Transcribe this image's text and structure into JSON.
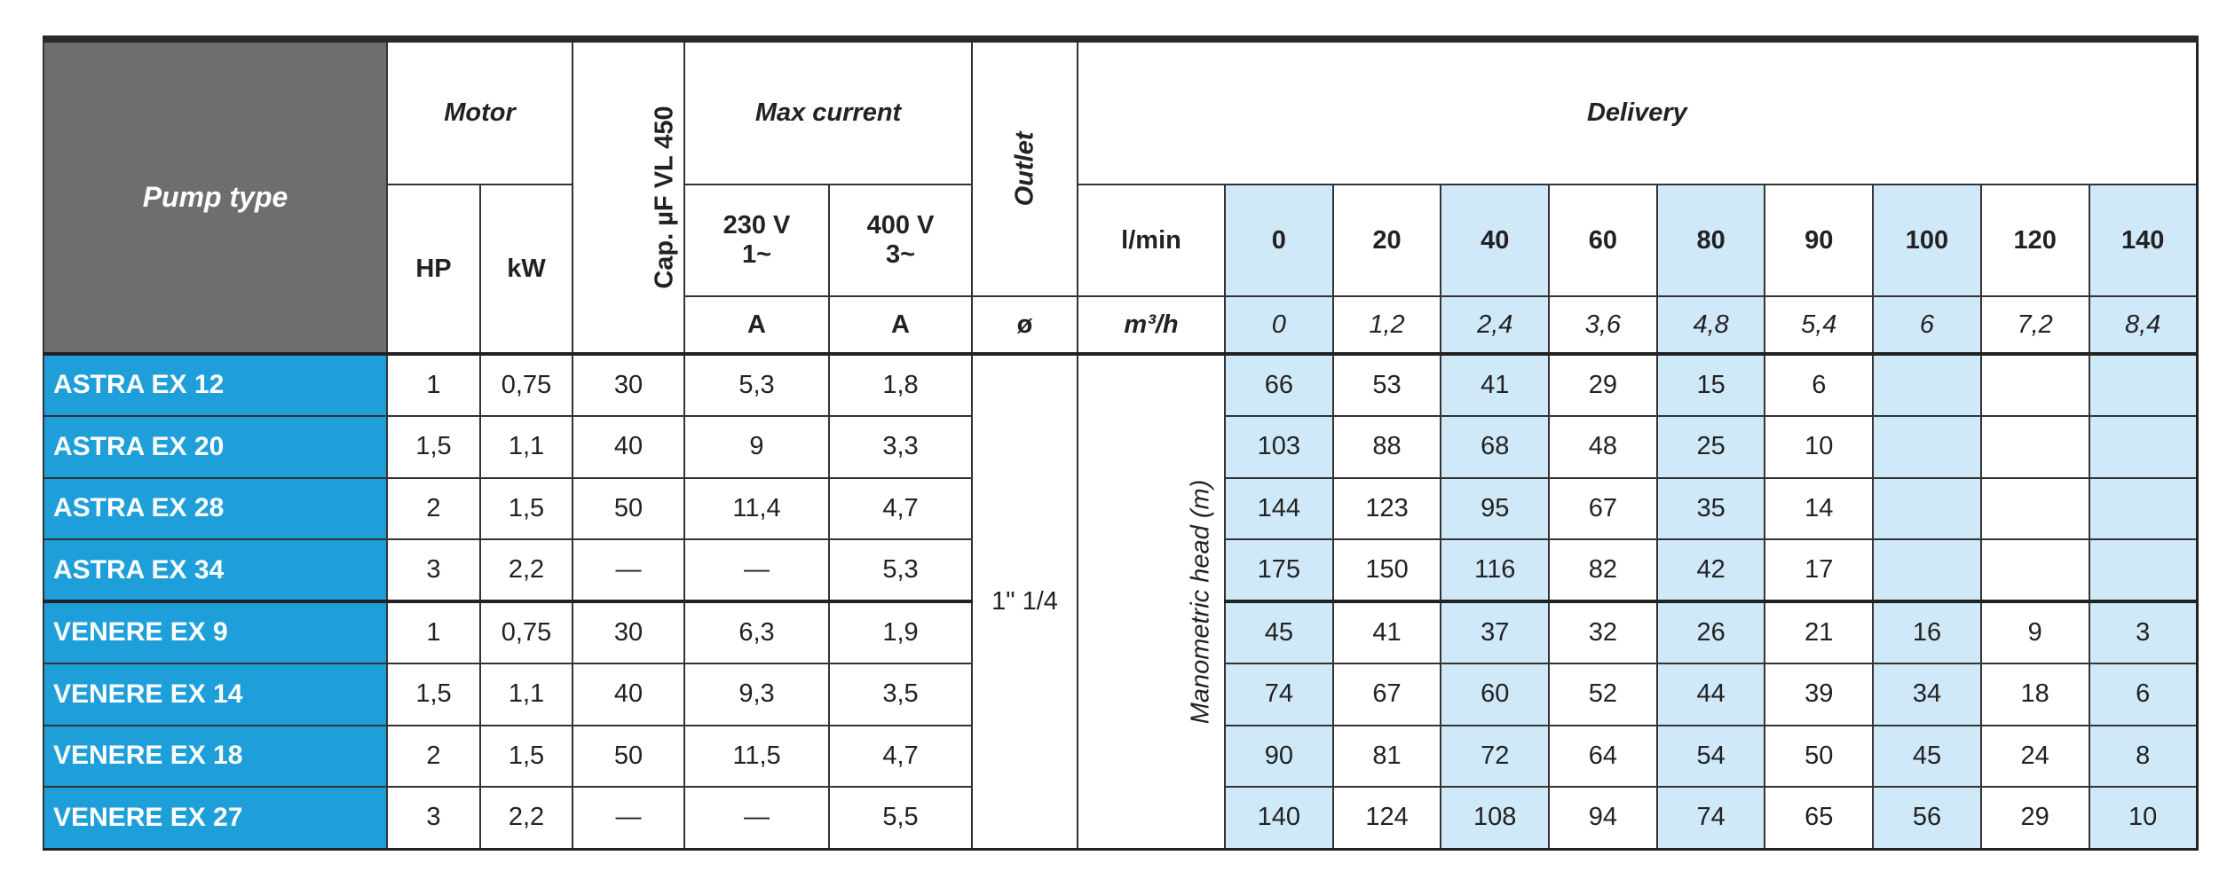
{
  "header": {
    "pump_type": "Pump type",
    "motor": "Motor",
    "hp": "HP",
    "kw": "kW",
    "capacitor": "Cap. µF VL 450",
    "max_current": "Max current",
    "v230": "230 V",
    "v230_phase": "1~",
    "v400": "400 V",
    "v400_phase": "3~",
    "amp_230": "A",
    "amp_400": "A",
    "outlet": "Outlet",
    "outlet_unit": "ø",
    "delivery": "Delivery",
    "lmin_label": "l/min",
    "m3h_label": "m³/h",
    "lmin": [
      "0",
      "20",
      "40",
      "60",
      "80",
      "90",
      "100",
      "120",
      "140"
    ],
    "m3h": [
      "0",
      "1,2",
      "2,4",
      "3,6",
      "4,8",
      "5,4",
      "6",
      "7,2",
      "8,4"
    ]
  },
  "outlet_value": "1\" 1/4",
  "manometric_label": "Manometric head (m)",
  "colors": {
    "header_gray": "#6e6e70",
    "pump_blue": "#1e9fd9",
    "shaded_col": "#cfe9f8"
  },
  "rows": [
    {
      "name": "ASTRA EX 12",
      "hp": "1",
      "kw": "0,75",
      "cap": "30",
      "a230": "5,3",
      "a400": "1,8",
      "head": [
        "66",
        "53",
        "41",
        "29",
        "15",
        "6",
        "",
        "",
        ""
      ]
    },
    {
      "name": "ASTRA EX 20",
      "hp": "1,5",
      "kw": "1,1",
      "cap": "40",
      "a230": "9",
      "a400": "3,3",
      "head": [
        "103",
        "88",
        "68",
        "48",
        "25",
        "10",
        "",
        "",
        ""
      ]
    },
    {
      "name": "ASTRA EX 28",
      "hp": "2",
      "kw": "1,5",
      "cap": "50",
      "a230": "11,4",
      "a400": "4,7",
      "head": [
        "144",
        "123",
        "95",
        "67",
        "35",
        "14",
        "",
        "",
        ""
      ]
    },
    {
      "name": "ASTRA EX 34",
      "hp": "3",
      "kw": "2,2",
      "cap": "—",
      "a230": "—",
      "a400": "5,3",
      "head": [
        "175",
        "150",
        "116",
        "82",
        "42",
        "17",
        "",
        "",
        ""
      ]
    },
    {
      "name": "VENERE EX 9",
      "hp": "1",
      "kw": "0,75",
      "cap": "30",
      "a230": "6,3",
      "a400": "1,9",
      "head": [
        "45",
        "41",
        "37",
        "32",
        "26",
        "21",
        "16",
        "9",
        "3"
      ]
    },
    {
      "name": "VENERE EX 14",
      "hp": "1,5",
      "kw": "1,1",
      "cap": "40",
      "a230": "9,3",
      "a400": "3,5",
      "head": [
        "74",
        "67",
        "60",
        "52",
        "44",
        "39",
        "34",
        "18",
        "6"
      ]
    },
    {
      "name": "VENERE EX 18",
      "hp": "2",
      "kw": "1,5",
      "cap": "50",
      "a230": "11,5",
      "a400": "4,7",
      "head": [
        "90",
        "81",
        "72",
        "64",
        "54",
        "50",
        "45",
        "24",
        "8"
      ]
    },
    {
      "name": "VENERE EX 27",
      "hp": "3",
      "kw": "2,2",
      "cap": "—",
      "a230": "—",
      "a400": "5,5",
      "head": [
        "140",
        "124",
        "108",
        "94",
        "74",
        "65",
        "56",
        "29",
        "10"
      ]
    }
  ]
}
